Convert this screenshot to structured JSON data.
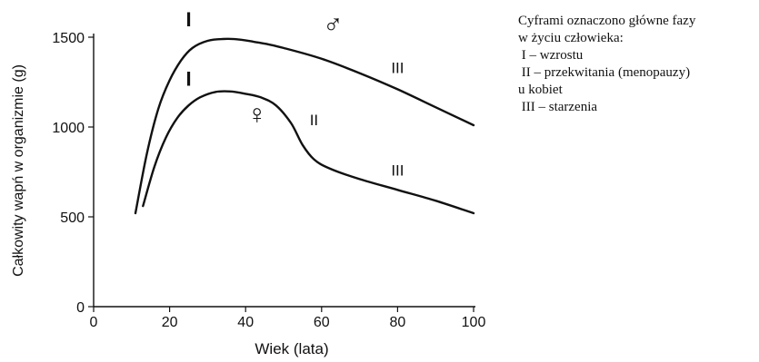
{
  "chart_data": {
    "type": "line",
    "xlabel": "Wiek (lata)",
    "ylabel": "Całkowity wapń w organizmie (g)",
    "xlim": [
      0,
      100
    ],
    "ylim": [
      0,
      1500
    ],
    "xticks": [
      "0",
      "20",
      "40",
      "60",
      "80",
      "100"
    ],
    "yticks": [
      "0",
      "500",
      "1000",
      "1500"
    ],
    "grid": false,
    "series": [
      {
        "symbol": "♂",
        "color": "#111111",
        "x": [
          11,
          14,
          17,
          20,
          23,
          26,
          30,
          34,
          38,
          42,
          46,
          50,
          60,
          70,
          80,
          90,
          100
        ],
        "y": [
          520,
          850,
          1100,
          1260,
          1370,
          1440,
          1480,
          1490,
          1488,
          1475,
          1460,
          1440,
          1380,
          1300,
          1210,
          1110,
          1010
        ]
      },
      {
        "symbol": "♀",
        "color": "#111111",
        "x": [
          13,
          16,
          19,
          22,
          25,
          28,
          32,
          36,
          40,
          44,
          48,
          52,
          55,
          58,
          62,
          70,
          80,
          90,
          100
        ],
        "y": [
          560,
          780,
          940,
          1050,
          1120,
          1165,
          1195,
          1198,
          1185,
          1165,
          1120,
          1020,
          900,
          820,
          770,
          710,
          650,
          590,
          520
        ]
      }
    ],
    "annotations": [
      {
        "text": "I",
        "x": 25,
        "y": 1560
      },
      {
        "text": "III",
        "x": 80,
        "y": 1300
      },
      {
        "text": "I",
        "x": 25,
        "y": 1230
      },
      {
        "text": "II",
        "x": 58,
        "y": 1010
      },
      {
        "text": "III",
        "x": 80,
        "y": 730
      }
    ],
    "symbols": [
      {
        "text": "♂",
        "x": 63,
        "y": 1520
      },
      {
        "text": "♀",
        "x": 43,
        "y": 1020
      }
    ]
  },
  "notes": {
    "lines": [
      "Cyframi oznaczono główne fazy",
      "w życiu człowieka:",
      " I – wzrostu",
      " II – przekwitania (menopauzy)",
      "u kobiet",
      " III – starzenia"
    ]
  }
}
